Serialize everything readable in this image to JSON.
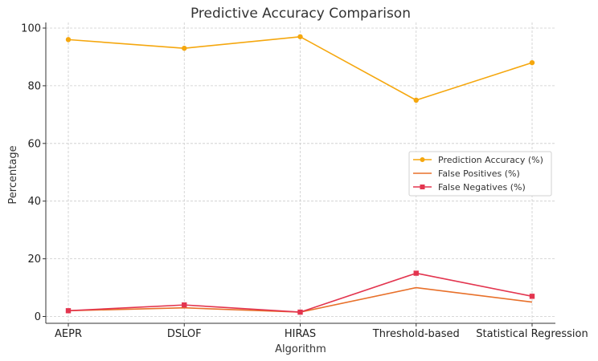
{
  "chart_data": {
    "type": "line",
    "title": "Predictive Accuracy Comparison",
    "xlabel": "Algorithm",
    "ylabel": "Percentage",
    "categories": [
      "AEPR",
      "DSLOF",
      "HIRAS",
      "Threshold-based",
      "Statistical Regression"
    ],
    "ylim": [
      0,
      100
    ],
    "yticks": [
      0,
      20,
      40,
      60,
      80,
      100
    ],
    "grid": true,
    "legend_position": "center-right",
    "series": [
      {
        "name": "Prediction Accuracy (%)",
        "values": [
          96,
          93,
          97,
          75,
          88
        ],
        "color": "#F5A70E",
        "marker": "circle"
      },
      {
        "name": "False Positives (%)",
        "values": [
          2,
          3,
          1.5,
          10,
          5
        ],
        "color": "#E8702A",
        "marker": "none"
      },
      {
        "name": "False Negatives (%)",
        "values": [
          2,
          4,
          1.5,
          15,
          7
        ],
        "color": "#E3354F",
        "marker": "square"
      }
    ]
  }
}
